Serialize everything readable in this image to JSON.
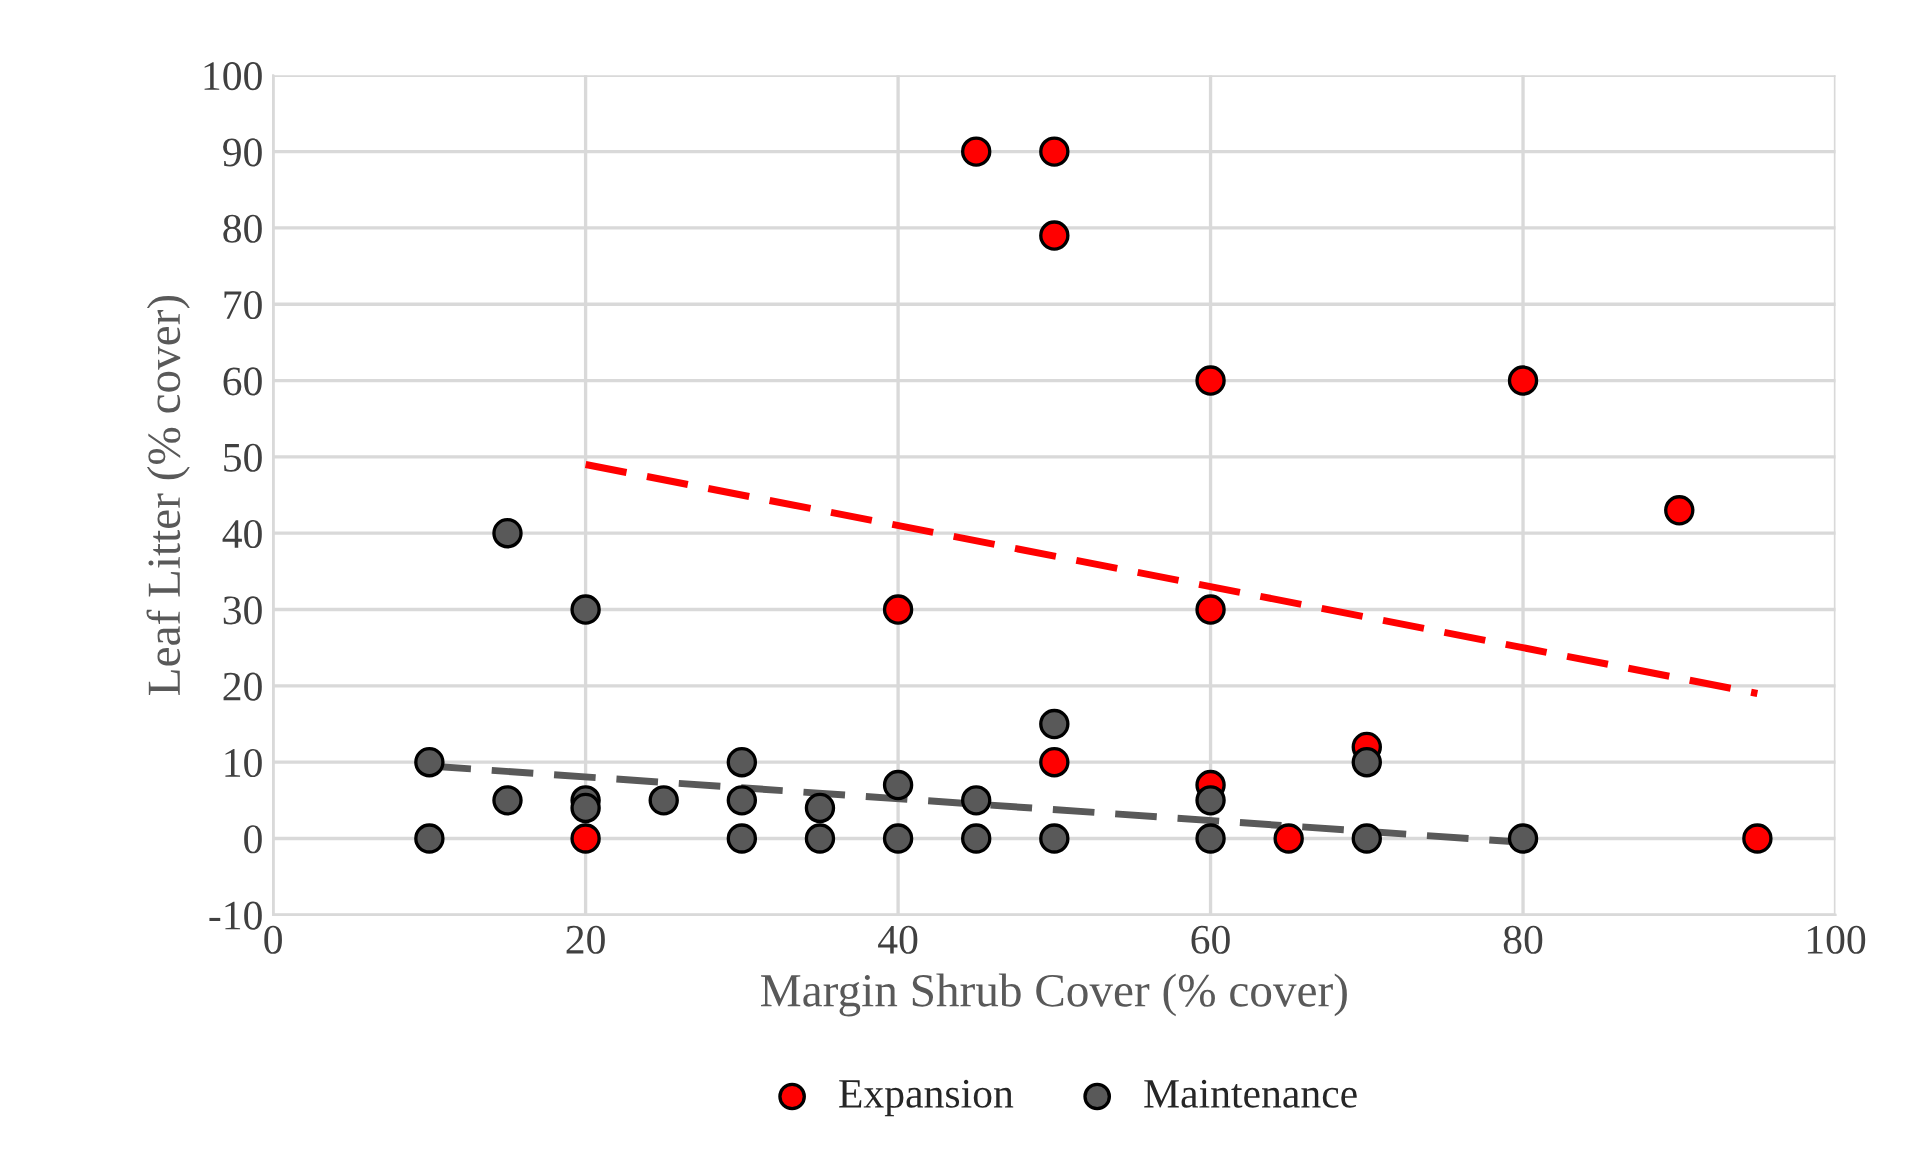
{
  "chart_data": {
    "type": "scatter",
    "xlabel": "Margin Shrub Cover (% cover)",
    "ylabel": "Leaf Litter (% cover)",
    "xlim": [
      0,
      100
    ],
    "xticks": [
      0,
      20,
      40,
      60,
      80,
      100
    ],
    "ylim": [
      -10,
      100
    ],
    "yticks": [
      -10,
      0,
      10,
      20,
      30,
      40,
      50,
      60,
      70,
      80,
      90,
      100
    ],
    "grid": true,
    "legend": "bottom",
    "marker": "circle",
    "series": [
      {
        "name": "Expansion",
        "color": "#ff0000",
        "x": [
          20,
          40,
          45,
          50,
          50,
          50,
          60,
          60,
          60,
          65,
          70,
          80,
          90,
          95
        ],
        "values": [
          0,
          30,
          90,
          90,
          79,
          10,
          60,
          30,
          7,
          0,
          12,
          60,
          43,
          0
        ]
      },
      {
        "name": "Maintenance",
        "color": "#595959",
        "x": [
          10,
          10,
          15,
          15,
          20,
          20,
          20,
          25,
          30,
          30,
          30,
          35,
          35,
          40,
          40,
          45,
          45,
          50,
          50,
          60,
          60,
          70,
          70,
          80
        ],
        "values": [
          10,
          0,
          40,
          5,
          30,
          5,
          4,
          5,
          10,
          5,
          0,
          4,
          0,
          7,
          0,
          5,
          0,
          15,
          0,
          5,
          0,
          10,
          0,
          0
        ]
      },
      {
        "type": "line",
        "color": "#ff0000",
        "line_style": "dashed",
        "marker": "none",
        "x": [
          20,
          95
        ],
        "values": [
          49,
          19
        ]
      },
      {
        "type": "line",
        "color": "#595959",
        "line_style": "dashed",
        "marker": "none",
        "x": [
          10,
          80
        ],
        "values": [
          9.5,
          -0.5
        ]
      }
    ]
  }
}
